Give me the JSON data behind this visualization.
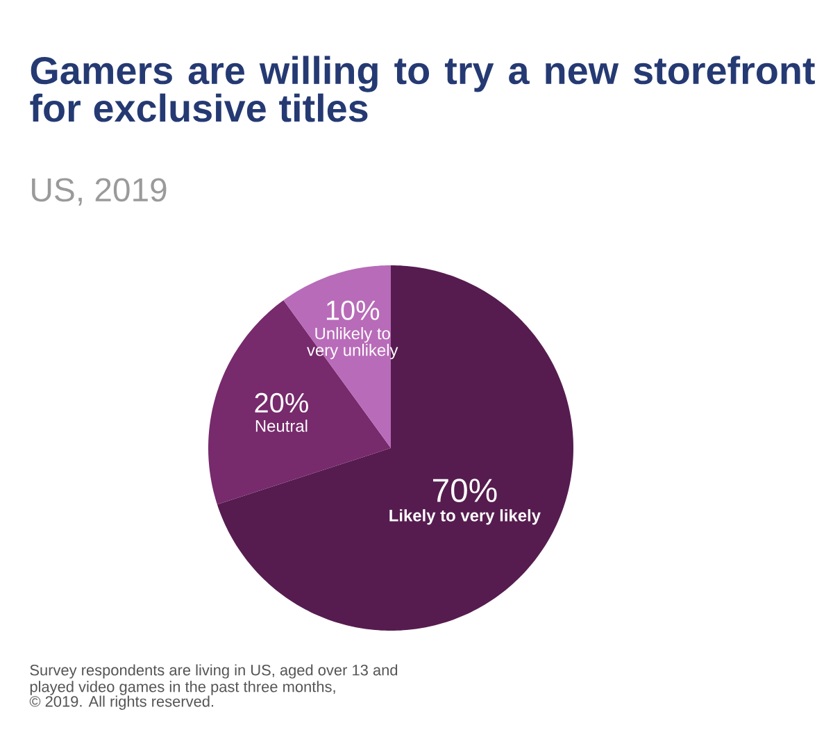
{
  "chart_data": {
    "type": "pie",
    "title": "Gamers are willing to try a new storefront for exclusive titles",
    "subtitle": "US, 2019",
    "categories": [
      "Likely to very likely",
      "Neutral",
      "Unlikely to very unlikely"
    ],
    "values": [
      70,
      20,
      10
    ],
    "value_labels": [
      "70%",
      "20%",
      "10%"
    ],
    "colors": [
      "#561c4f",
      "#772a6c",
      "#b86bb8"
    ],
    "annotations": [
      "Survey respondents are living in US, aged over 13 and played video games in the past three months,",
      "© 2019. All rights reserved."
    ]
  }
}
